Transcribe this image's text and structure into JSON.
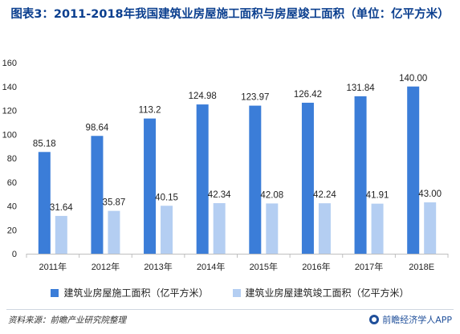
{
  "title": "图表3：2011-2018年我国建筑业房屋施工面积与房屋竣工面积（单位：亿平方米）",
  "source": "资料来源：前瞻产业研究院整理",
  "brand": "前瞻经济学人APP",
  "chart_data": {
    "type": "bar",
    "categories": [
      "2011年",
      "2012年",
      "2013年",
      "2014年",
      "2015年",
      "2016年",
      "2017年",
      "2018E"
    ],
    "series": [
      {
        "name": "建筑业房屋施工面积（亿平方米）",
        "color": "#3b7dd8",
        "values": [
          85.18,
          98.64,
          113.2,
          124.98,
          123.97,
          126.42,
          131.84,
          140.0
        ],
        "labels": [
          "85.18",
          "98.64",
          "113.2",
          "124.98",
          "123.97",
          "126.42",
          "131.84",
          "140.00"
        ]
      },
      {
        "name": "建筑业房屋建筑竣工面积（亿平方米）",
        "color": "#b4cef2",
        "values": [
          31.64,
          35.87,
          40.15,
          42.34,
          42.08,
          42.24,
          41.91,
          43.0
        ],
        "labels": [
          "31.64",
          "35.87",
          "40.15",
          "42.34",
          "42.08",
          "42.24",
          "41.91",
          "43.00"
        ]
      }
    ],
    "ylim": [
      0,
      160
    ],
    "yticks": [
      0,
      20,
      40,
      60,
      80,
      100,
      120,
      140,
      160
    ],
    "grid": false,
    "legend_position": "bottom"
  }
}
